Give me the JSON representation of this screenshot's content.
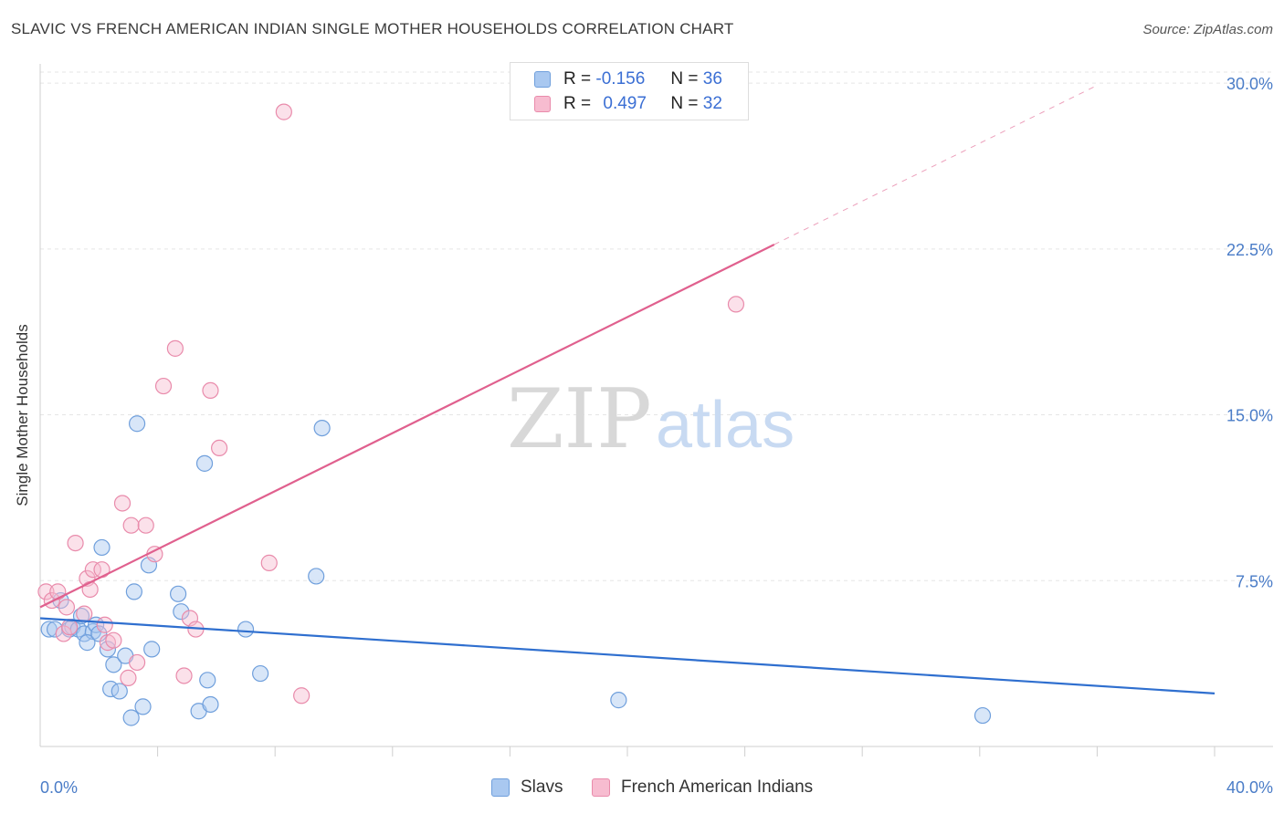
{
  "title": "SLAVIC VS FRENCH AMERICAN INDIAN SINGLE MOTHER HOUSEHOLDS CORRELATION CHART",
  "source": "Source: ZipAtlas.com",
  "watermark": {
    "zip": "ZIP",
    "atlas": "atlas"
  },
  "colors": {
    "slavs_fill": "#a9c8f0",
    "slavs_stroke": "#6f9fdc",
    "slavs_line": "#2f6fcf",
    "french_fill": "#f7bcd0",
    "french_stroke": "#e98bab",
    "french_line": "#e0608e",
    "grid": "#e5e5e5",
    "tick_label": "#4a7cc7"
  },
  "legend": {
    "row1": {
      "r_label": "R =",
      "r_value": "-0.156",
      "n_label": "N =",
      "n_value": "36"
    },
    "row2": {
      "r_label": "R =",
      "r_value": "0.497",
      "n_label": "N =",
      "n_value": "32"
    }
  },
  "bottom_legend": {
    "slavs": "Slavs",
    "french": "French American Indians"
  },
  "chart_data": {
    "type": "scatter",
    "title": "SLAVIC VS FRENCH AMERICAN INDIAN SINGLE MOTHER HOUSEHOLDS CORRELATION CHART",
    "xlabel": "",
    "ylabel": "Single Mother Households",
    "xlim": [
      0,
      40
    ],
    "ylim": [
      0,
      30.5
    ],
    "x_tick_labels": {
      "min": "0.0%",
      "max": "40.0%"
    },
    "y_ticks": [
      {
        "value": 7.5,
        "label": "7.5%"
      },
      {
        "value": 15.0,
        "label": "15.0%"
      },
      {
        "value": 22.5,
        "label": "22.5%"
      },
      {
        "value": 30.0,
        "label": "30.0%"
      }
    ],
    "series": [
      {
        "name": "Slavs",
        "points": [
          [
            0.3,
            5.3
          ],
          [
            0.5,
            5.3
          ],
          [
            0.7,
            6.6
          ],
          [
            1.0,
            5.3
          ],
          [
            1.1,
            5.4
          ],
          [
            1.3,
            5.3
          ],
          [
            1.5,
            5.1
          ],
          [
            1.8,
            5.2
          ],
          [
            1.4,
            5.9
          ],
          [
            1.6,
            4.7
          ],
          [
            1.9,
            5.5
          ],
          [
            2.0,
            5.1
          ],
          [
            2.1,
            9.0
          ],
          [
            2.3,
            4.4
          ],
          [
            2.5,
            3.7
          ],
          [
            2.4,
            2.6
          ],
          [
            2.7,
            2.5
          ],
          [
            2.9,
            4.1
          ],
          [
            3.1,
            1.3
          ],
          [
            3.2,
            7.0
          ],
          [
            3.5,
            1.8
          ],
          [
            3.3,
            14.6
          ],
          [
            3.7,
            8.2
          ],
          [
            3.8,
            4.4
          ],
          [
            4.7,
            6.9
          ],
          [
            4.8,
            6.1
          ],
          [
            5.4,
            1.6
          ],
          [
            5.6,
            12.8
          ],
          [
            5.7,
            3.0
          ],
          [
            5.8,
            1.9
          ],
          [
            7.0,
            5.3
          ],
          [
            7.5,
            3.3
          ],
          [
            9.4,
            7.7
          ],
          [
            9.6,
            14.4
          ],
          [
            19.7,
            2.1
          ],
          [
            32.1,
            1.4
          ]
        ]
      },
      {
        "name": "French American Indians",
        "points": [
          [
            0.2,
            7.0
          ],
          [
            0.4,
            6.6
          ],
          [
            0.6,
            7.0
          ],
          [
            0.8,
            5.1
          ],
          [
            0.9,
            6.3
          ],
          [
            1.0,
            5.4
          ],
          [
            1.2,
            9.2
          ],
          [
            1.5,
            6.0
          ],
          [
            1.6,
            7.6
          ],
          [
            1.7,
            7.1
          ],
          [
            1.8,
            8.0
          ],
          [
            2.1,
            8.0
          ],
          [
            2.2,
            5.5
          ],
          [
            2.3,
            4.7
          ],
          [
            2.5,
            4.8
          ],
          [
            2.8,
            11.0
          ],
          [
            3.0,
            3.1
          ],
          [
            3.1,
            10.0
          ],
          [
            3.3,
            3.8
          ],
          [
            3.6,
            10.0
          ],
          [
            3.9,
            8.7
          ],
          [
            4.2,
            16.3
          ],
          [
            4.6,
            18.0
          ],
          [
            4.9,
            3.2
          ],
          [
            5.1,
            5.8
          ],
          [
            5.3,
            5.3
          ],
          [
            5.8,
            16.1
          ],
          [
            6.1,
            13.5
          ],
          [
            7.8,
            8.3
          ],
          [
            8.9,
            2.3
          ],
          [
            8.3,
            28.7
          ],
          [
            23.7,
            20.0
          ]
        ]
      }
    ],
    "trendlines": [
      {
        "series": "Slavs",
        "x0": 0,
        "y0": 5.8,
        "x1": 40,
        "y1": 2.4,
        "style": "solid"
      },
      {
        "series": "French American Indians",
        "x0": 0,
        "y0": 6.3,
        "x1": 25.0,
        "y1": 22.7,
        "style": "solid"
      },
      {
        "series": "French American Indians",
        "x0": 25.0,
        "y0": 22.7,
        "x1": 36.0,
        "y1": 29.9,
        "style": "dashed"
      }
    ]
  }
}
